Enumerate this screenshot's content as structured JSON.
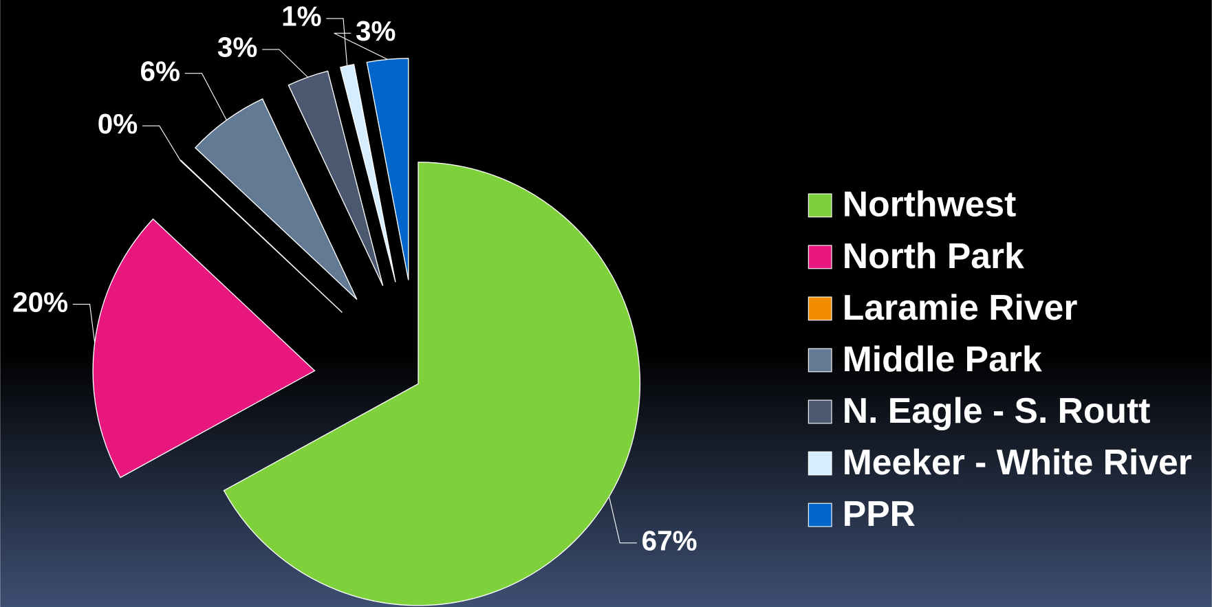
{
  "chart_data": {
    "type": "pie",
    "categories": [
      "Northwest",
      "North Park",
      "Laramie River",
      "Middle Park",
      "N. Eagle - S. Routt",
      "Meeker - White River",
      "PPR"
    ],
    "values": [
      67,
      20,
      0,
      6,
      3,
      1,
      3
    ],
    "value_labels": [
      "67%",
      "20%",
      "0%",
      "6%",
      "3%",
      "1%",
      "3%"
    ],
    "colors": [
      "#7fd13b",
      "#e8177d",
      "#f28c00",
      "#627a94",
      "#4a5870",
      "#d6ecff",
      "#0066cc"
    ],
    "legend": "right"
  }
}
